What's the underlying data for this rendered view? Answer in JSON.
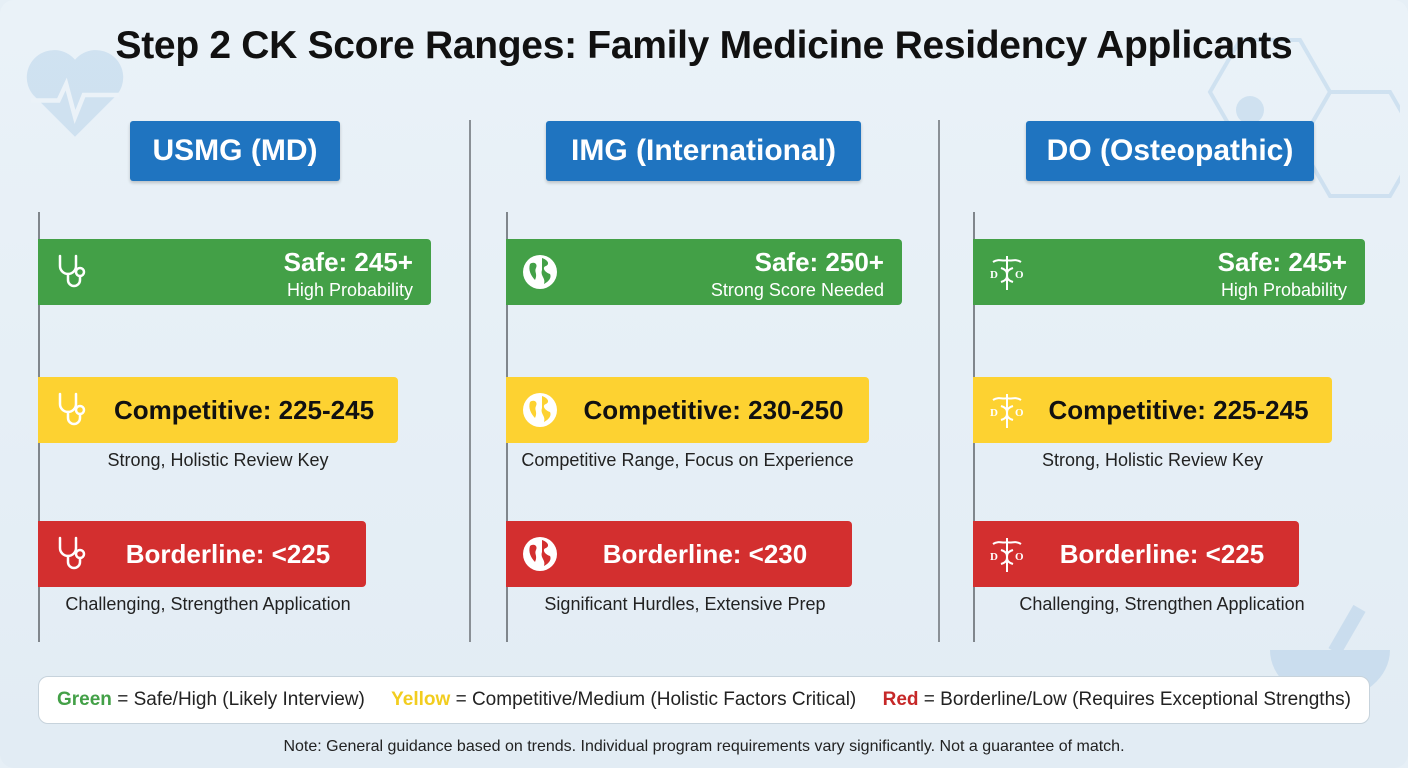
{
  "title": "Step 2 CK Score Ranges: Family Medicine Residency Applicants",
  "colors": {
    "safe": "#43a047",
    "competitive": "#fdd231",
    "borderline": "#d32f2f",
    "header": "#1f74c0"
  },
  "columns": [
    {
      "header": "USMG (MD)",
      "icon": "stethoscope-icon",
      "safe": {
        "label": "Safe: 245+",
        "sub": "High Probability"
      },
      "competitive": {
        "label": "Competitive: 225-245",
        "sub": "Strong, Holistic Review Key"
      },
      "borderline": {
        "label": "Borderline: <225",
        "sub": "Challenging, Strengthen Application"
      }
    },
    {
      "header": "IMG (International)",
      "icon": "globe-icon",
      "safe": {
        "label": "Safe: 250+",
        "sub": "Strong Score Needed"
      },
      "competitive": {
        "label": "Competitive: 230-250",
        "sub": "Competitive Range, Focus on Experience"
      },
      "borderline": {
        "label": "Borderline: <230",
        "sub": "Significant Hurdles, Extensive Prep"
      }
    },
    {
      "header": "DO (Osteopathic)",
      "icon": "caduceus-do-icon",
      "safe": {
        "label": "Safe: 245+",
        "sub": "High Probability"
      },
      "competitive": {
        "label": "Competitive: 225-245",
        "sub": "Strong, Holistic Review Key"
      },
      "borderline": {
        "label": "Borderline: <225",
        "sub": "Challenging, Strengthen Application"
      }
    }
  ],
  "legend": [
    {
      "key": "Green",
      "text": " = Safe/High (Likely Interview)",
      "color": "#43a047"
    },
    {
      "key": "Yellow",
      "text": " = Competitive/Medium (Holistic Factors Critical)",
      "color": "#f2cd1f"
    },
    {
      "key": "Red",
      "text": " = Borderline/Low (Requires Exceptional Strengths)",
      "color": "#c62828"
    }
  ],
  "note": "Note: General guidance based on trends. Individual program requirements vary significantly. Not a guarantee of match."
}
